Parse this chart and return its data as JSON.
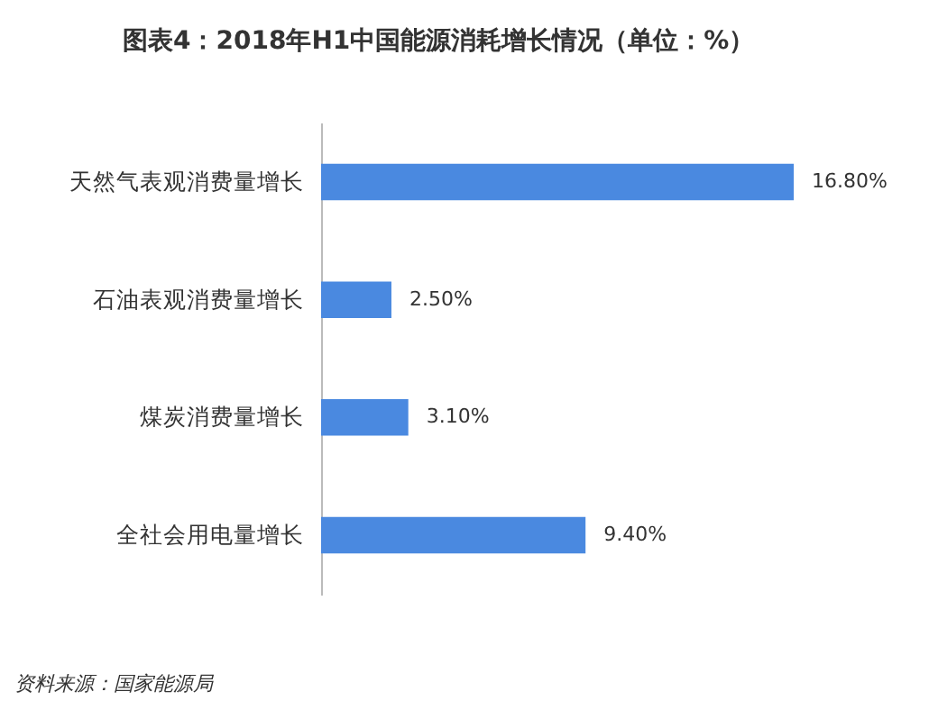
{
  "chart_data": {
    "type": "bar",
    "orientation": "horizontal",
    "title": "图表4：2018年H1中国能源消耗增长情况（单位：%）",
    "categories": [
      "天然气表观消费量增长",
      "石油表观消费量增长",
      "煤炭消费量增长",
      "全社会用电量增长"
    ],
    "values": [
      16.8,
      2.5,
      3.1,
      9.4
    ],
    "value_labels": [
      "16.80%",
      "2.50%",
      "3.10%",
      "9.40%"
    ],
    "color": "#4a89e0",
    "annotations": [
      "资料来源：国家能源局"
    ]
  }
}
